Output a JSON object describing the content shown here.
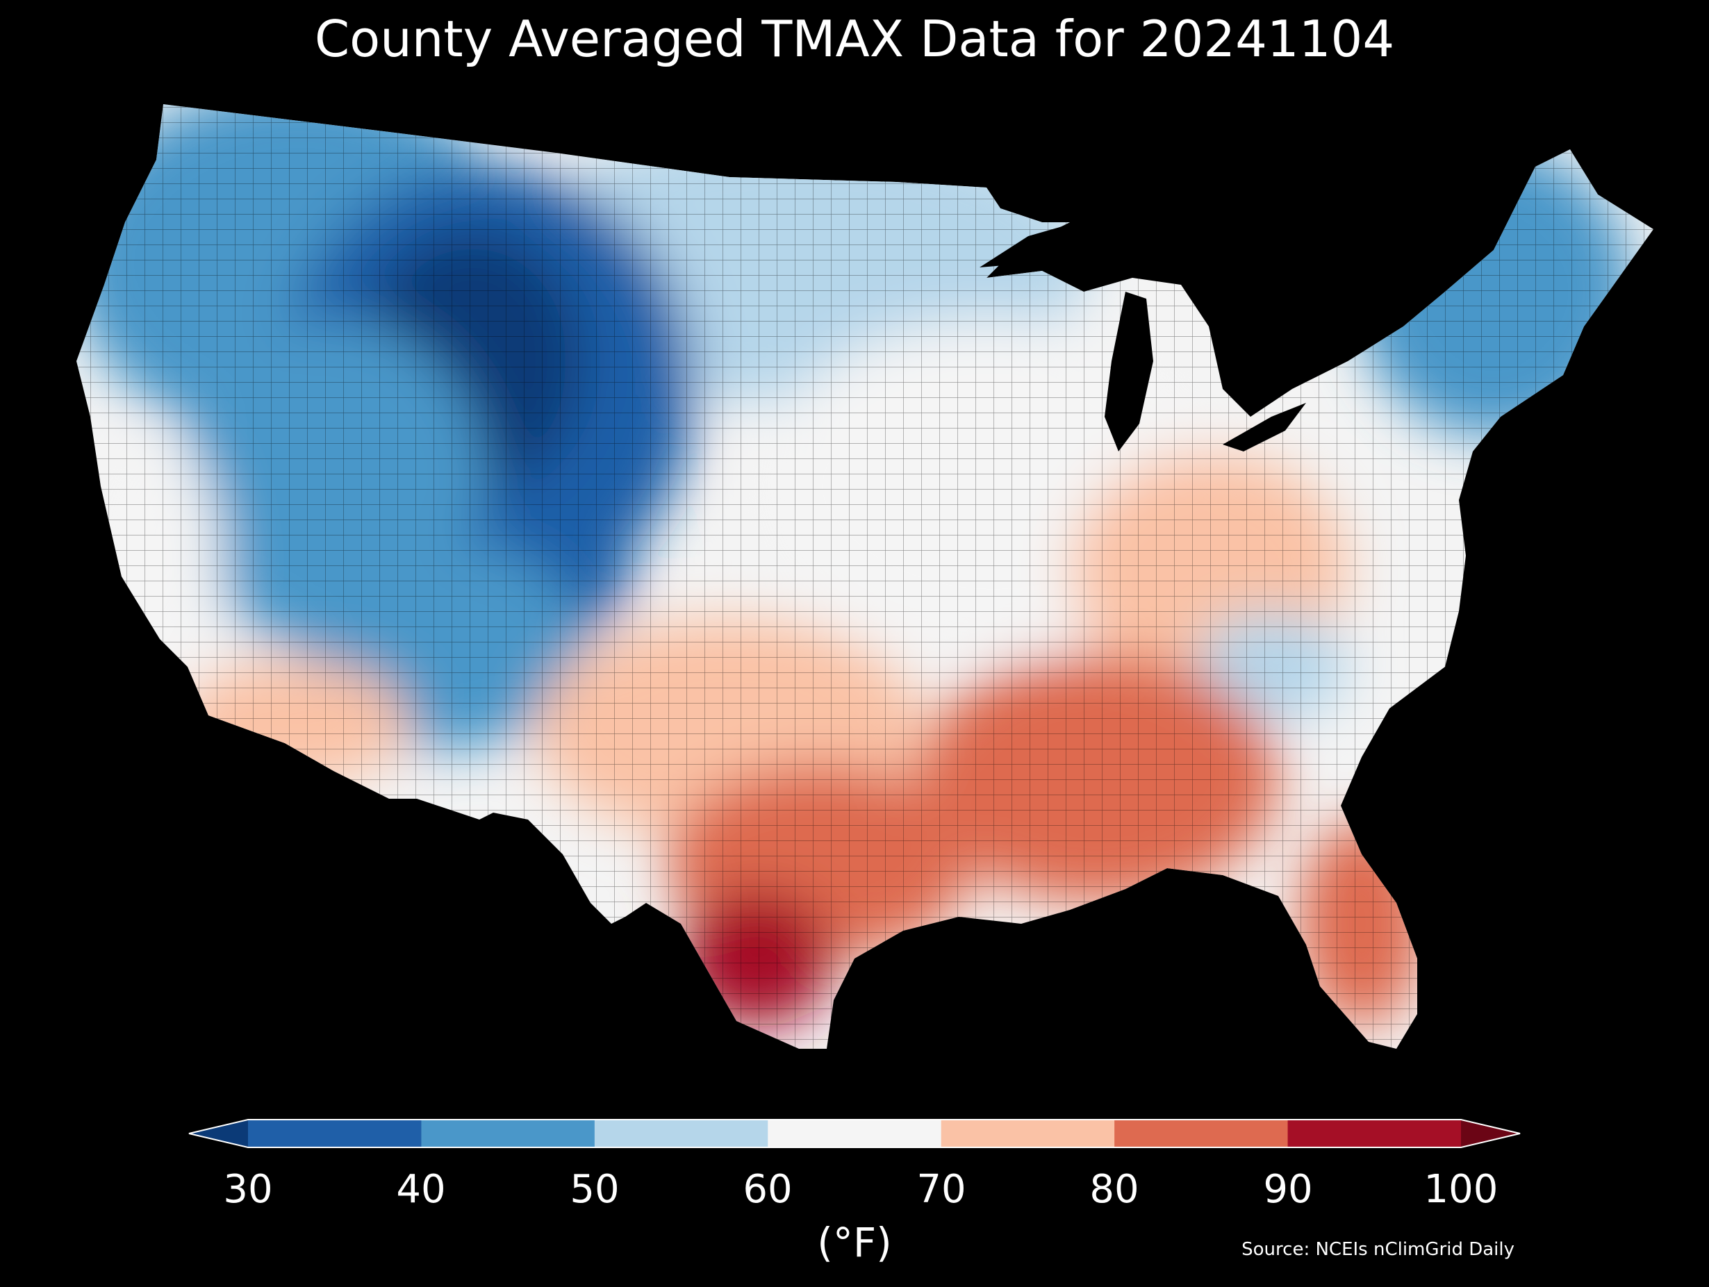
{
  "title": "County Averaged TMAX Data for 20241104",
  "colorbar": {
    "unit": "(°F)",
    "ticks": [
      "30",
      "40",
      "50",
      "60",
      "70",
      "80",
      "90",
      "100"
    ],
    "colors": [
      "#0b3a77",
      "#1f5fa8",
      "#4a97c9",
      "#b5d6ea",
      "#f5f5f5",
      "#fac2a6",
      "#de6a50",
      "#a50f26",
      "#6b0515"
    ],
    "extend": "both"
  },
  "source": "Source: NCEIs nClimGrid Daily",
  "map": {
    "region": "Contiguous United States",
    "variable": "TMAX",
    "units": "°F",
    "date": "20241104",
    "regional_ranges": [
      {
        "region": "Northern Rockies / Great Basin",
        "range": "30-40"
      },
      {
        "region": "Pacific Northwest / Northern Plains",
        "range": "40-60"
      },
      {
        "region": "New England",
        "range": "40-50"
      },
      {
        "region": "Midwest / Ohio Valley / Mid-Atlantic",
        "range": "60-70"
      },
      {
        "region": "Southern Plains / Southeast",
        "range": "70-80"
      },
      {
        "region": "Gulf Coast / Florida",
        "range": "80-90"
      },
      {
        "region": "South Texas",
        "range": "90-100"
      }
    ]
  }
}
